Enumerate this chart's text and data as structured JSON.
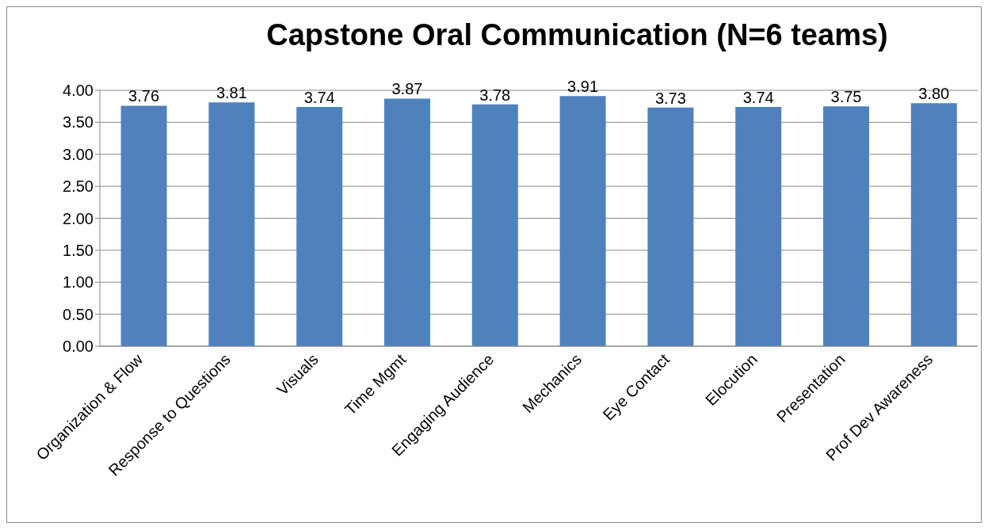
{
  "chart_data": {
    "type": "bar",
    "title": "Capstone Oral Communication (N=6 teams)",
    "categories": [
      "Organization & Flow",
      "Response to Questions",
      "Visuals",
      "Time Mgmt",
      "Engaging Audience",
      "Mechanics",
      "Eye Contact",
      "Elocution",
      "Presentation",
      "Prof Dev Awareness"
    ],
    "values": [
      3.76,
      3.81,
      3.74,
      3.87,
      3.78,
      3.91,
      3.73,
      3.74,
      3.75,
      3.8
    ],
    "value_labels": [
      "3.76",
      "3.81",
      "3.74",
      "3.87",
      "3.78",
      "3.91",
      "3.73",
      "3.74",
      "3.75",
      "3.80"
    ],
    "color": "#4f81bd",
    "ylim": [
      0,
      4
    ],
    "yticks": [
      {
        "value": 0,
        "label": "0.00"
      },
      {
        "value": 0.5,
        "label": "0.50"
      },
      {
        "value": 1,
        "label": "1.00"
      },
      {
        "value": 1.5,
        "label": "1.50"
      },
      {
        "value": 2,
        "label": "2.00"
      },
      {
        "value": 2.5,
        "label": "2.50"
      },
      {
        "value": 3,
        "label": "3.00"
      },
      {
        "value": 3.5,
        "label": "3.50"
      },
      {
        "value": 4,
        "label": "4.00"
      }
    ],
    "grid": "y"
  }
}
